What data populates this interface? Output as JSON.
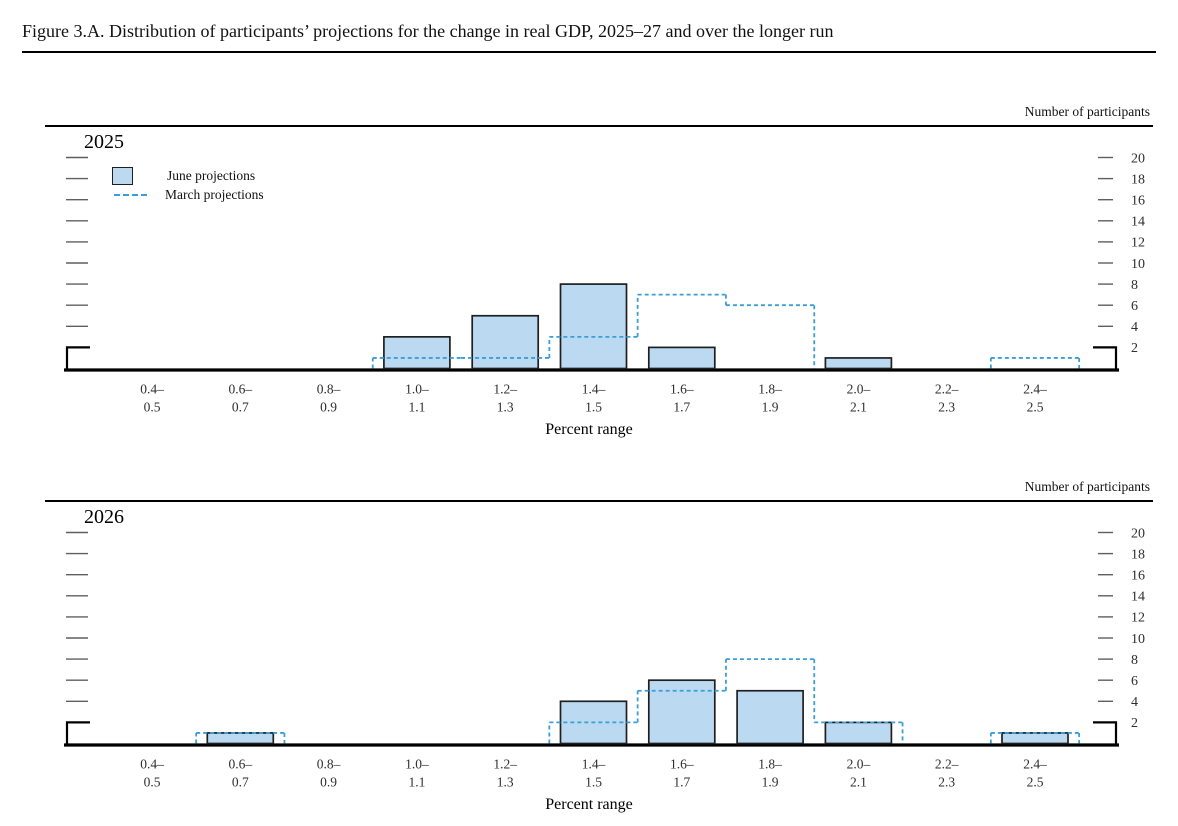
{
  "title": "Figure 3.A. Distribution of participants’ projections for the change in real GDP, 2025–27 and over the longer run",
  "axis": {
    "right_label": "Number of participants",
    "x_label": "Percent range",
    "y_ticks": [
      2,
      4,
      6,
      8,
      10,
      12,
      14,
      16,
      18,
      20
    ]
  },
  "legend": {
    "june_label": "June projections",
    "march_label": "March projections"
  },
  "colors": {
    "bar_fill": "#bcd9f2",
    "bar_border": "#1f1f1f",
    "march_line": "#3a9fd8",
    "axis": "#000000",
    "tick": "#5f5f5f",
    "tick_label": "#2e2e2e"
  },
  "chart_data": [
    {
      "type": "bar",
      "title": "2025",
      "xlabel": "Percent range",
      "ylabel": "Number of participants",
      "ylim": [
        0,
        21
      ],
      "grid": false,
      "legend_position": "top-left",
      "categories": [
        "0.4–0.5",
        "0.6–0.7",
        "0.8–0.9",
        "1.0–1.1",
        "1.2–1.3",
        "1.4–1.5",
        "1.6–1.7",
        "1.8–1.9",
        "2.0–2.1",
        "2.2–2.3",
        "2.4–2.5"
      ],
      "series": [
        {
          "name": "June projections",
          "style": "filled-bar",
          "values": [
            0,
            0,
            0,
            3,
            5,
            8,
            2,
            0,
            1,
            0,
            0
          ]
        },
        {
          "name": "March projections",
          "style": "dashed-step",
          "values": [
            0,
            0,
            0,
            1,
            1,
            3,
            7,
            6,
            0,
            0,
            1
          ]
        }
      ]
    },
    {
      "type": "bar",
      "title": "2026",
      "xlabel": "Percent range",
      "ylabel": "Number of participants",
      "ylim": [
        0,
        21
      ],
      "grid": false,
      "legend_position": "none",
      "categories": [
        "0.4–0.5",
        "0.6–0.7",
        "0.8–0.9",
        "1.0–1.1",
        "1.2–1.3",
        "1.4–1.5",
        "1.6–1.7",
        "1.8–1.9",
        "2.0–2.1",
        "2.2–2.3",
        "2.4–2.5"
      ],
      "series": [
        {
          "name": "June projections",
          "style": "filled-bar",
          "values": [
            0,
            1,
            0,
            0,
            0,
            4,
            6,
            5,
            2,
            0,
            1
          ]
        },
        {
          "name": "March projections",
          "style": "dashed-step",
          "values": [
            0,
            1,
            0,
            0,
            0,
            2,
            5,
            8,
            2,
            0,
            1
          ]
        }
      ]
    }
  ]
}
